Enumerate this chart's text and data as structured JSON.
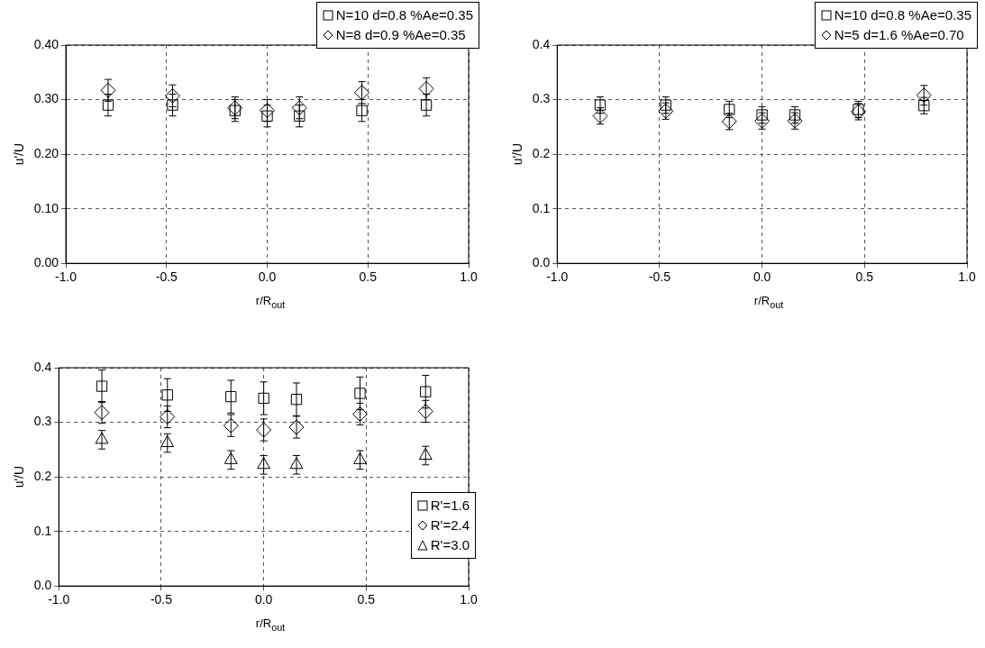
{
  "chart_data": [
    {
      "type": "scatter",
      "xlabel": "r/R$_{out}$",
      "ylabel": "u'/U",
      "x": [
        -0.79,
        -0.47,
        -0.16,
        0,
        0.16,
        0.47,
        0.79
      ],
      "xlim": [
        -1,
        1
      ],
      "xticks": [
        {
          "value": -1,
          "label": "-1.0"
        },
        {
          "value": -0.5,
          "label": "-0.5"
        },
        {
          "value": 0,
          "label": "0.0"
        },
        {
          "value": 0.5,
          "label": "0.5"
        },
        {
          "value": 1,
          "label": "1.0"
        }
      ],
      "ylim": [
        0,
        0.4
      ],
      "yticks": [
        {
          "value": 0,
          "label": "0.00"
        },
        {
          "value": 0.1,
          "label": "0.10"
        },
        {
          "value": 0.2,
          "label": "0.20"
        },
        {
          "value": 0.3,
          "label": "0.30"
        },
        {
          "value": 0.4,
          "label": "0.40"
        }
      ],
      "grid": true,
      "legend": "top right",
      "series": [
        {
          "name": "N=10 d=0.8 %Ae=0.35",
          "color": "#000000",
          "marker": "square",
          "values": [
            0.29,
            0.29,
            0.28,
            0.27,
            0.27,
            0.28,
            0.29
          ],
          "errors": [
            0.02,
            0.02,
            0.02,
            0.02,
            0.02,
            0.02,
            0.02
          ]
        },
        {
          "name": "N=8 d=0.9 %Ae=0.35",
          "color": "#000000",
          "marker": "diamond",
          "values": [
            0.317,
            0.307,
            0.285,
            0.28,
            0.285,
            0.313,
            0.32
          ],
          "errors": [
            0.02,
            0.02,
            0.02,
            0.02,
            0.02,
            0.02,
            0.02
          ]
        }
      ]
    },
    {
      "type": "scatter",
      "xlabel": "r/R$_{out}$",
      "ylabel": "u'/U",
      "x": [
        -0.79,
        -0.47,
        -0.16,
        0,
        0.16,
        0.47,
        0.79
      ],
      "xlim": [
        -1,
        1
      ],
      "xticks": [
        {
          "value": -1,
          "label": "-1.0"
        },
        {
          "value": -0.5,
          "label": "-0.5"
        },
        {
          "value": 0,
          "label": "0.0"
        },
        {
          "value": 0.5,
          "label": "0.5"
        },
        {
          "value": 1,
          "label": "1.0"
        }
      ],
      "ylim": [
        0,
        0.4
      ],
      "yticks": [
        {
          "value": 0,
          "label": "0.0"
        },
        {
          "value": 0.1,
          "label": "0.1"
        },
        {
          "value": 0.2,
          "label": "0.2"
        },
        {
          "value": 0.3,
          "label": "0.3"
        },
        {
          "value": 0.4,
          "label": "0.4"
        }
      ],
      "grid": true,
      "legend": "top right",
      "series": [
        {
          "name": "N=10 d=0.8 %Ae=0.35",
          "color": "#000000",
          "marker": "square",
          "values": [
            0.29,
            0.29,
            0.282,
            0.272,
            0.272,
            0.282,
            0.289
          ],
          "errors": [
            0.015,
            0.015,
            0.015,
            0.015,
            0.015,
            0.015,
            0.015
          ]
        },
        {
          "name": "N=5 d=1.6 %Ae=0.70",
          "color": "#000000",
          "marker": "diamond",
          "values": [
            0.27,
            0.279,
            0.26,
            0.261,
            0.261,
            0.278,
            0.308
          ],
          "errors": [
            0.015,
            0.015,
            0.015,
            0.015,
            0.015,
            0.015,
            0.018
          ]
        }
      ]
    },
    {
      "type": "scatter",
      "xlabel": "r/R$_{out}$",
      "ylabel": "u'/U",
      "x": [
        -0.79,
        -0.47,
        -0.16,
        0,
        0.16,
        0.47,
        0.79
      ],
      "xlim": [
        -1,
        1
      ],
      "xticks": [
        {
          "value": -1,
          "label": "-1.0"
        },
        {
          "value": -0.5,
          "label": "-0.5"
        },
        {
          "value": 0,
          "label": "0.0"
        },
        {
          "value": 0.5,
          "label": "0.5"
        },
        {
          "value": 1,
          "label": "1.0"
        }
      ],
      "ylim": [
        0,
        0.4
      ],
      "yticks": [
        {
          "value": 0,
          "label": "0.0"
        },
        {
          "value": 0.1,
          "label": "0.1"
        },
        {
          "value": 0.2,
          "label": "0.2"
        },
        {
          "value": 0.3,
          "label": "0.3"
        },
        {
          "value": 0.4,
          "label": "0.4"
        }
      ],
      "grid": true,
      "legend": "bottom right",
      "series": [
        {
          "name": "R'=1.6",
          "color": "#000000",
          "marker": "square",
          "values": [
            0.366,
            0.35,
            0.347,
            0.344,
            0.342,
            0.353,
            0.356
          ],
          "errors": [
            0.03,
            0.03,
            0.03,
            0.03,
            0.03,
            0.03,
            0.03
          ]
        },
        {
          "name": "R'=2.4",
          "color": "#000000",
          "marker": "diamond",
          "values": [
            0.318,
            0.31,
            0.294,
            0.286,
            0.291,
            0.315,
            0.32
          ],
          "errors": [
            0.02,
            0.02,
            0.02,
            0.02,
            0.02,
            0.02,
            0.02
          ]
        },
        {
          "name": "R'=3.0",
          "color": "#000000",
          "marker": "triangle",
          "values": [
            0.268,
            0.262,
            0.231,
            0.222,
            0.222,
            0.231,
            0.239
          ],
          "errors": [
            0.017,
            0.017,
            0.017,
            0.017,
            0.017,
            0.017,
            0.017
          ]
        }
      ]
    }
  ]
}
